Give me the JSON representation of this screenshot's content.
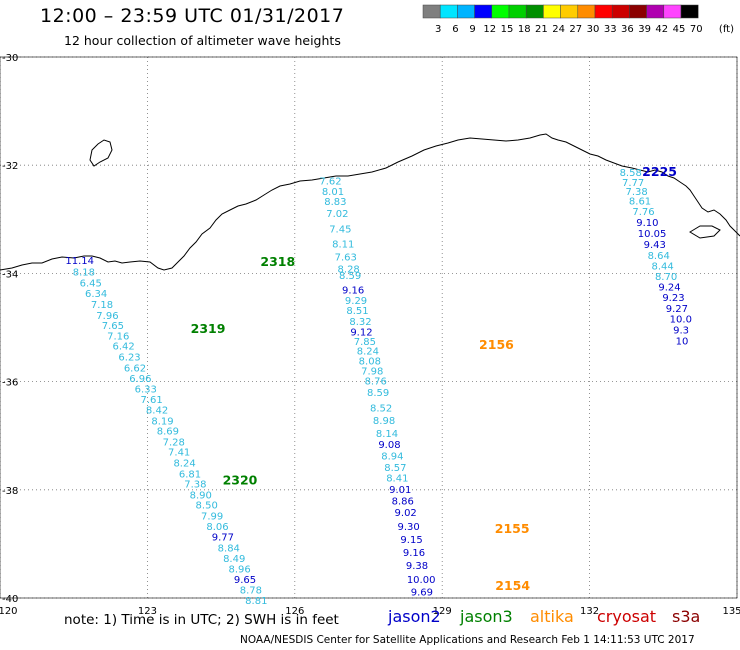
{
  "header": {
    "title": "12:00 – 23:59 UTC 01/31/2017",
    "subtitle": "12 hour collection of altimeter wave heights"
  },
  "legend": {
    "unit": "(ft)",
    "bins": [
      {
        "label": "3",
        "color": "#7f7f7f"
      },
      {
        "label": "6",
        "color": "#00e5ff"
      },
      {
        "label": "9",
        "color": "#00b4ff"
      },
      {
        "label": "12",
        "color": "#0000ff"
      },
      {
        "label": "15",
        "color": "#00ff00"
      },
      {
        "label": "18",
        "color": "#00d000"
      },
      {
        "label": "21",
        "color": "#008f00"
      },
      {
        "label": "24",
        "color": "#ffff00"
      },
      {
        "label": "27",
        "color": "#ffcc00"
      },
      {
        "label": "30",
        "color": "#ff8c00"
      },
      {
        "label": "33",
        "color": "#ff0000"
      },
      {
        "label": "36",
        "color": "#cc0000"
      },
      {
        "label": "39",
        "color": "#8b0000"
      },
      {
        "label": "42",
        "color": "#b000b0"
      },
      {
        "label": "45",
        "color": "#ff44ff"
      },
      {
        "label": "70",
        "color": "#000000"
      }
    ]
  },
  "axes": {
    "lon_labels": [
      "120",
      "123",
      "126",
      "129",
      "132",
      "135"
    ],
    "lat_labels": [
      "-30",
      "-32",
      "-34",
      "-36",
      "-38",
      "-40"
    ],
    "lon_range": [
      120,
      135
    ],
    "lat_range": [
      -40,
      -30
    ],
    "grid": "dotted"
  },
  "colors": {
    "jason2": "#0000c8",
    "jason3": "#008000",
    "altika": "#ff8c00",
    "cryosat": "#cc0000",
    "s3a": "#8b0000",
    "wave_low": "#33bbdd",
    "wave_mid": "#00a0dd",
    "wave_high": "#0000c8"
  },
  "passes": [
    {
      "label": "2318",
      "satellite": "jason3",
      "lon": 125.3,
      "lat": -33.86
    },
    {
      "label": "2319",
      "satellite": "jason3",
      "lon": 123.88,
      "lat": -35.1
    },
    {
      "label": "2320",
      "satellite": "jason3",
      "lon": 124.53,
      "lat": -37.9
    },
    {
      "label": "2156",
      "satellite": "altika",
      "lon": 129.75,
      "lat": -35.4
    },
    {
      "label": "2155",
      "satellite": "altika",
      "lon": 130.07,
      "lat": -38.8
    },
    {
      "label": "2154",
      "satellite": "altika",
      "lon": 130.08,
      "lat": -39.85
    },
    {
      "label": "2225",
      "satellite": "jason2",
      "lon": 133.07,
      "lat": -32.2
    }
  ],
  "tracks": {
    "jason3_2318_2320": [
      {
        "v": "11.14",
        "lon": 121.33,
        "lat": -33.83,
        "c": "high"
      },
      {
        "v": "8.18",
        "lon": 121.48,
        "lat": -34.04,
        "c": "low"
      },
      {
        "v": "6.45",
        "lon": 121.62,
        "lat": -34.24,
        "c": "low"
      },
      {
        "v": "6.34",
        "lon": 121.73,
        "lat": -34.44,
        "c": "low"
      },
      {
        "v": "7.18",
        "lon": 121.85,
        "lat": -34.64,
        "c": "low"
      },
      {
        "v": "7.96",
        "lon": 121.96,
        "lat": -34.84,
        "c": "low"
      },
      {
        "v": "7.65",
        "lon": 122.07,
        "lat": -35.03,
        "c": "low"
      },
      {
        "v": "7.16",
        "lon": 122.18,
        "lat": -35.22,
        "c": "low"
      },
      {
        "v": "6.42",
        "lon": 122.29,
        "lat": -35.41,
        "c": "low"
      },
      {
        "v": "6.23",
        "lon": 122.41,
        "lat": -35.61,
        "c": "low"
      },
      {
        "v": "6.62",
        "lon": 122.52,
        "lat": -35.81,
        "c": "low"
      },
      {
        "v": "6.96",
        "lon": 122.63,
        "lat": -36.01,
        "c": "low"
      },
      {
        "v": "6.33",
        "lon": 122.74,
        "lat": -36.2,
        "c": "low"
      },
      {
        "v": "7.61",
        "lon": 122.86,
        "lat": -36.4,
        "c": "low"
      },
      {
        "v": "8.42",
        "lon": 122.97,
        "lat": -36.59,
        "c": "low"
      },
      {
        "v": "8.19",
        "lon": 123.08,
        "lat": -36.79,
        "c": "low"
      },
      {
        "v": "8.69",
        "lon": 123.19,
        "lat": -36.98,
        "c": "low"
      },
      {
        "v": "7.28",
        "lon": 123.31,
        "lat": -37.18,
        "c": "low"
      },
      {
        "v": "7.41",
        "lon": 123.42,
        "lat": -37.37,
        "c": "low"
      },
      {
        "v": "8.24",
        "lon": 123.53,
        "lat": -37.57,
        "c": "low"
      },
      {
        "v": "6.81",
        "lon": 123.64,
        "lat": -37.77,
        "c": "low"
      },
      {
        "v": "7.38",
        "lon": 123.75,
        "lat": -37.96,
        "c": "low"
      },
      {
        "v": "8.90",
        "lon": 123.86,
        "lat": -38.16,
        "c": "low"
      },
      {
        "v": "8.50",
        "lon": 123.98,
        "lat": -38.35,
        "c": "low"
      },
      {
        "v": "7.99",
        "lon": 124.09,
        "lat": -38.55,
        "c": "low"
      },
      {
        "v": "8.06",
        "lon": 124.2,
        "lat": -38.74,
        "c": "low"
      },
      {
        "v": "9.77",
        "lon": 124.31,
        "lat": -38.94,
        "c": "high"
      },
      {
        "v": "8.84",
        "lon": 124.43,
        "lat": -39.14,
        "c": "low"
      },
      {
        "v": "8.49",
        "lon": 124.54,
        "lat": -39.33,
        "c": "low"
      },
      {
        "v": "8.96",
        "lon": 124.65,
        "lat": -39.53,
        "c": "low"
      },
      {
        "v": "9.65",
        "lon": 124.76,
        "lat": -39.72,
        "c": "high"
      },
      {
        "v": "8.78",
        "lon": 124.88,
        "lat": -39.92,
        "c": "low"
      },
      {
        "v": "8.81",
        "lon": 124.99,
        "lat": -40.11,
        "c": "low"
      }
    ],
    "altika_2154_2156": [
      {
        "v": "7.62",
        "lon": 126.5,
        "lat": -32.36,
        "c": "low"
      },
      {
        "v": "8.01",
        "lon": 126.55,
        "lat": -32.55,
        "c": "low"
      },
      {
        "v": "8.83",
        "lon": 126.6,
        "lat": -32.74,
        "c": "low"
      },
      {
        "v": "7.02",
        "lon": 126.64,
        "lat": -32.96,
        "c": "low"
      },
      {
        "v": "7.45",
        "lon": 126.7,
        "lat": -33.24,
        "c": "low"
      },
      {
        "v": "8.11",
        "lon": 126.76,
        "lat": -33.52,
        "c": "low"
      },
      {
        "v": "7.63",
        "lon": 126.81,
        "lat": -33.76,
        "c": "low"
      },
      {
        "v": "8.28",
        "lon": 126.87,
        "lat": -33.98,
        "c": "low"
      },
      {
        "v": "8.59",
        "lon": 126.9,
        "lat": -34.1,
        "c": "low"
      },
      {
        "v": "9.16",
        "lon": 126.96,
        "lat": -34.37,
        "c": "high"
      },
      {
        "v": "9.29",
        "lon": 127.02,
        "lat": -34.57,
        "c": "low"
      },
      {
        "v": "8.51",
        "lon": 127.05,
        "lat": -34.75,
        "c": "low"
      },
      {
        "v": "8.32",
        "lon": 127.11,
        "lat": -34.95,
        "c": "low"
      },
      {
        "v": "9.12",
        "lon": 127.13,
        "lat": -35.15,
        "c": "high"
      },
      {
        "v": "7.85",
        "lon": 127.2,
        "lat": -35.32,
        "c": "low"
      },
      {
        "v": "8.24",
        "lon": 127.26,
        "lat": -35.5,
        "c": "low"
      },
      {
        "v": "8.08",
        "lon": 127.3,
        "lat": -35.68,
        "c": "low"
      },
      {
        "v": "7.98",
        "lon": 127.35,
        "lat": -35.87,
        "c": "low"
      },
      {
        "v": "8.76",
        "lon": 127.42,
        "lat": -36.05,
        "c": "low"
      },
      {
        "v": "8.59",
        "lon": 127.47,
        "lat": -36.27,
        "c": "low"
      },
      {
        "v": "8.52",
        "lon": 127.53,
        "lat": -36.55,
        "c": "low"
      },
      {
        "v": "8.98",
        "lon": 127.59,
        "lat": -36.78,
        "c": "low"
      },
      {
        "v": "8.14",
        "lon": 127.65,
        "lat": -37.02,
        "c": "low"
      },
      {
        "v": "9.08",
        "lon": 127.7,
        "lat": -37.23,
        "c": "high"
      },
      {
        "v": "8.94",
        "lon": 127.76,
        "lat": -37.44,
        "c": "low"
      },
      {
        "v": "8.57",
        "lon": 127.82,
        "lat": -37.65,
        "c": "low"
      },
      {
        "v": "8.41",
        "lon": 127.86,
        "lat": -37.85,
        "c": "low"
      },
      {
        "v": "9.01",
        "lon": 127.92,
        "lat": -38.06,
        "c": "high"
      },
      {
        "v": "8.86",
        "lon": 127.97,
        "lat": -38.27,
        "c": "high"
      },
      {
        "v": "9.02",
        "lon": 128.03,
        "lat": -38.48,
        "c": "high"
      },
      {
        "v": "9.30",
        "lon": 128.09,
        "lat": -38.74,
        "c": "high"
      },
      {
        "v": "9.15",
        "lon": 128.15,
        "lat": -38.98,
        "c": "high"
      },
      {
        "v": "9.16",
        "lon": 128.2,
        "lat": -39.22,
        "c": "high"
      },
      {
        "v": "9.38",
        "lon": 128.26,
        "lat": -39.46,
        "c": "high"
      },
      {
        "v": "10.00",
        "lon": 128.28,
        "lat": -39.72,
        "c": "high"
      },
      {
        "v": "9.69",
        "lon": 128.36,
        "lat": -39.95,
        "c": "high"
      }
    ],
    "jason2_2225": [
      {
        "v": "8.58",
        "lon": 132.61,
        "lat": -32.2,
        "c": "low"
      },
      {
        "v": "7.77",
        "lon": 132.66,
        "lat": -32.38,
        "c": "low"
      },
      {
        "v": "7.38",
        "lon": 132.73,
        "lat": -32.55,
        "c": "low"
      },
      {
        "v": "8.61",
        "lon": 132.8,
        "lat": -32.73,
        "c": "low"
      },
      {
        "v": "7.76",
        "lon": 132.87,
        "lat": -32.92,
        "c": "low"
      },
      {
        "v": "9.10",
        "lon": 132.95,
        "lat": -33.12,
        "c": "high"
      },
      {
        "v": "10.05",
        "lon": 132.98,
        "lat": -33.33,
        "c": "high"
      },
      {
        "v": "9.43",
        "lon": 133.1,
        "lat": -33.53,
        "c": "high"
      },
      {
        "v": "8.64",
        "lon": 133.18,
        "lat": -33.73,
        "c": "low"
      },
      {
        "v": "8.44",
        "lon": 133.26,
        "lat": -33.93,
        "c": "low"
      },
      {
        "v": "8.70",
        "lon": 133.33,
        "lat": -34.12,
        "c": "low"
      },
      {
        "v": "9.24",
        "lon": 133.4,
        "lat": -34.32,
        "c": "high"
      },
      {
        "v": "9.23",
        "lon": 133.48,
        "lat": -34.51,
        "c": "high"
      },
      {
        "v": "9.27",
        "lon": 133.55,
        "lat": -34.71,
        "c": "high"
      },
      {
        "v": "10.0",
        "lon": 133.63,
        "lat": -34.91,
        "c": "high"
      },
      {
        "v": "9.3",
        "lon": 133.7,
        "lat": -35.11,
        "c": "high"
      },
      {
        "v": "10",
        "lon": 133.75,
        "lat": -35.31,
        "c": "high"
      }
    ]
  },
  "footer": {
    "note": "note: 1) Time is in UTC; 2) SWH is in feet",
    "satellites": [
      {
        "name": "jason2",
        "key": "jason2"
      },
      {
        "name": "jason3",
        "key": "jason3"
      },
      {
        "name": "altika",
        "key": "altika"
      },
      {
        "name": "cryosat",
        "key": "cryosat"
      },
      {
        "name": "s3a",
        "key": "s3a"
      }
    ],
    "credit": "NOAA/NESDIS Center for Satellite Applications and Research    Feb  1 14:11:53 UTC 2017"
  }
}
